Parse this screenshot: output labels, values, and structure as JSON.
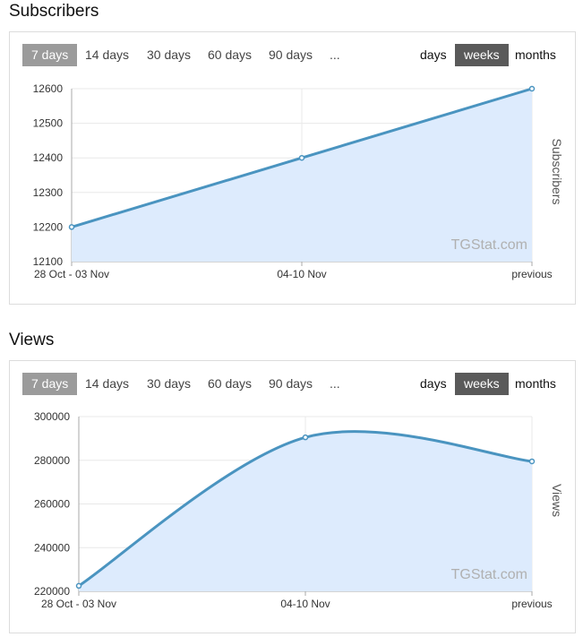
{
  "periods": [
    "7 days",
    "14 days",
    "30 days",
    "60 days",
    "90 days",
    "..."
  ],
  "active_period": "7 days",
  "groupings": [
    "days",
    "weeks",
    "months"
  ],
  "active_grouping": "weeks",
  "watermark": "TGStat.com",
  "colors": {
    "line": "#4a94c0",
    "fill": "#ddebfd",
    "grid": "#e8e8e8"
  },
  "sections": [
    {
      "title": "Subscribers"
    },
    {
      "title": "Views"
    }
  ],
  "chart_data": [
    {
      "type": "area",
      "title": "Subscribers",
      "ylabel": "Subscribers",
      "x": [
        "28 Oct - 03 Nov",
        "04-10 Nov",
        "previous"
      ],
      "values": [
        12200,
        12400,
        12600
      ],
      "yticks": [
        12100,
        12200,
        12300,
        12400,
        12500,
        12600
      ],
      "ylim": [
        12100,
        12600
      ],
      "smooth": false,
      "grid": true
    },
    {
      "type": "area",
      "title": "Views",
      "ylabel": "Views",
      "x": [
        "28 Oct - 03 Nov",
        "04-10 Nov",
        "previous"
      ],
      "values": [
        222500,
        290500,
        279500
      ],
      "yticks": [
        220000,
        240000,
        260000,
        280000,
        300000
      ],
      "ylim": [
        220000,
        300000
      ],
      "smooth": true,
      "grid": true
    }
  ]
}
